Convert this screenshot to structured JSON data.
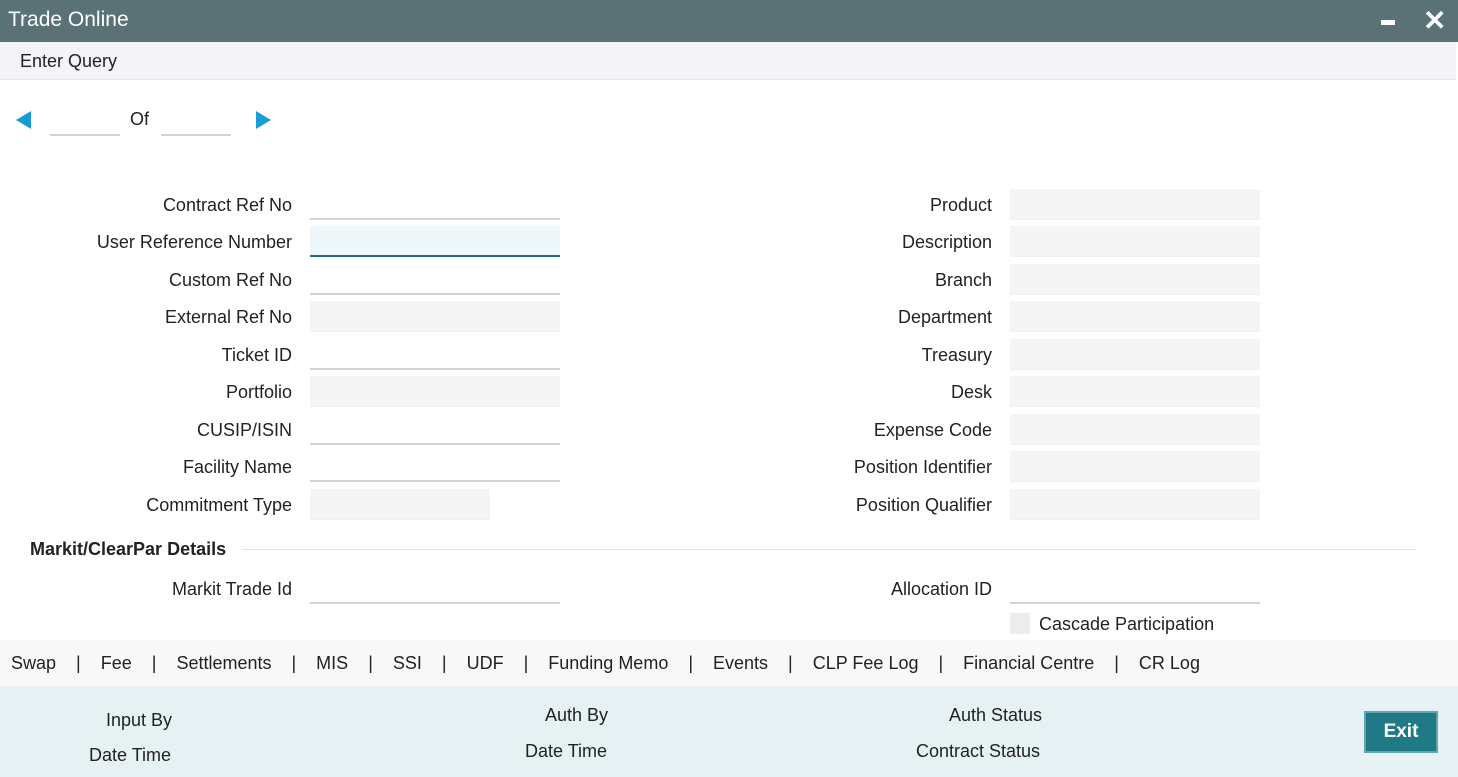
{
  "window": {
    "title": "Trade Online",
    "minimize_icon": "minimize-icon",
    "close_icon": "close-icon"
  },
  "menu": {
    "enter_query": "Enter Query"
  },
  "pager": {
    "of": "Of",
    "current": "",
    "total": ""
  },
  "left_fields": [
    {
      "label": "Contract Ref No",
      "value": ""
    },
    {
      "label": "User Reference Number",
      "value": ""
    },
    {
      "label": "Custom Ref No",
      "value": ""
    },
    {
      "label": "External Ref No",
      "value": ""
    },
    {
      "label": "Ticket ID",
      "value": ""
    },
    {
      "label": "Portfolio",
      "value": ""
    },
    {
      "label": "CUSIP/ISIN",
      "value": ""
    },
    {
      "label": "Facility Name",
      "value": ""
    },
    {
      "label": "Commitment Type",
      "value": ""
    }
  ],
  "right_fields": [
    {
      "label": "Product",
      "value": ""
    },
    {
      "label": "Description",
      "value": ""
    },
    {
      "label": "Branch",
      "value": ""
    },
    {
      "label": "Department",
      "value": ""
    },
    {
      "label": "Treasury",
      "value": ""
    },
    {
      "label": "Desk",
      "value": ""
    },
    {
      "label": "Expense Code",
      "value": ""
    },
    {
      "label": "Position Identifier",
      "value": ""
    },
    {
      "label": "Position Qualifier",
      "value": ""
    }
  ],
  "markit": {
    "heading": "Markit/ClearPar Details",
    "trade_id_label": "Markit Trade Id",
    "allocation_id_label": "Allocation ID",
    "cascade_label": "Cascade Participation",
    "cascade_checked": false
  },
  "tabs": [
    "Swap",
    "Fee",
    "Settlements",
    "MIS",
    "SSI",
    "UDF",
    "Funding Memo",
    "Events",
    "CLP Fee Log",
    "Financial Centre",
    "CR Log"
  ],
  "footer": {
    "input_by": "Input By",
    "date_time_1": "Date Time",
    "auth_by": "Auth By",
    "date_time_2": "Date Time",
    "auth_status": "Auth Status",
    "contract_status": "Contract Status",
    "exit": "Exit"
  }
}
